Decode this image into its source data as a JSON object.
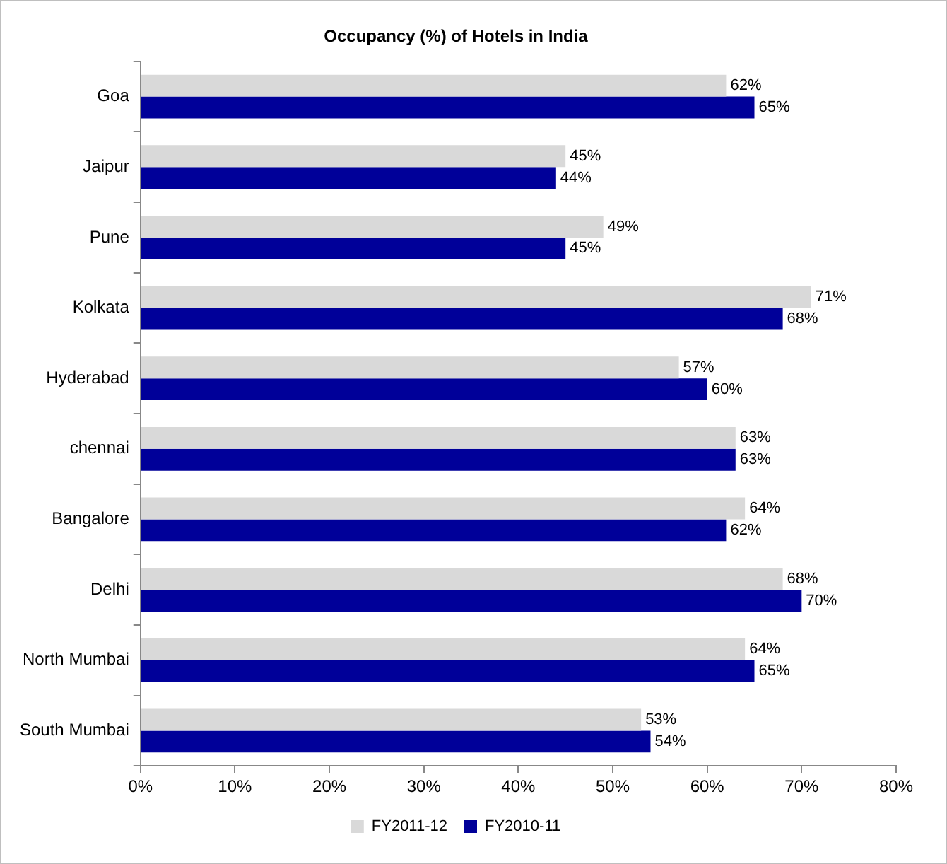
{
  "chart_data": {
    "type": "bar",
    "orientation": "horizontal",
    "title": "Occupancy (%) of Hotels in India",
    "categories": [
      "Goa",
      "Jaipur",
      "Pune",
      "Kolkata",
      "Hyderabad",
      "chennai",
      "Bangalore",
      "Delhi",
      "North Mumbai",
      "South Mumbai"
    ],
    "series": [
      {
        "name": "FY2011-12",
        "color": "#d9d9d9",
        "values": [
          62,
          45,
          49,
          71,
          57,
          63,
          64,
          68,
          64,
          53
        ],
        "value_labels": [
          "62%",
          "45%",
          "49%",
          "71%",
          "57%",
          "63%",
          "64%",
          "68%",
          "64%",
          "53%"
        ]
      },
      {
        "name": "FY2010-11",
        "color": "#000099",
        "values": [
          65,
          44,
          45,
          68,
          60,
          63,
          62,
          70,
          65,
          54
        ],
        "value_labels": [
          "65%",
          "44%",
          "45%",
          "68%",
          "60%",
          "63%",
          "62%",
          "70%",
          "65%",
          "54%"
        ]
      }
    ],
    "xlim": [
      0,
      80
    ],
    "xticks": [
      {
        "value": 0,
        "label": "0%"
      },
      {
        "value": 10,
        "label": "10%"
      },
      {
        "value": 20,
        "label": "20%"
      },
      {
        "value": 30,
        "label": "30%"
      },
      {
        "value": 40,
        "label": "40%"
      },
      {
        "value": 50,
        "label": "50%"
      },
      {
        "value": 60,
        "label": "60%"
      },
      {
        "value": 70,
        "label": "70%"
      },
      {
        "value": 80,
        "label": "80%"
      }
    ],
    "grid": false,
    "legend": "bottom"
  }
}
